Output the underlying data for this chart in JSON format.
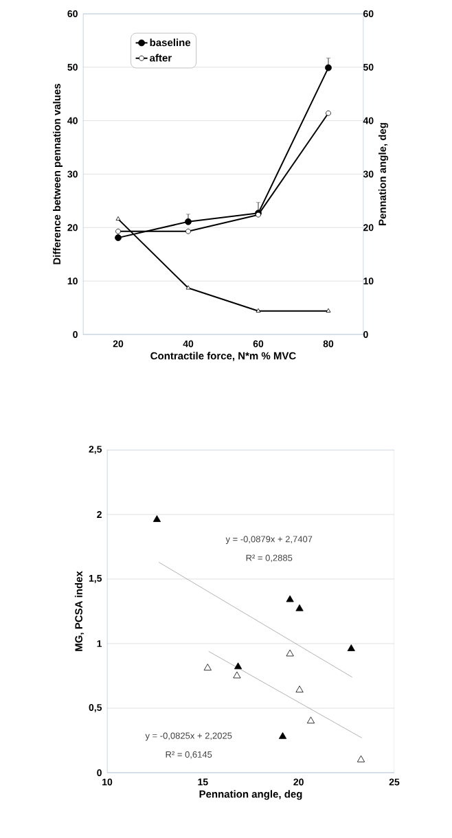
{
  "chart_data": [
    {
      "type": "line",
      "xlabel": "Contractile force, N*m % MVC",
      "ylabel": "Difference between pennation values",
      "y2label": "Pennation angle, deg",
      "x": [
        20,
        40,
        60,
        80
      ],
      "xlim": [
        10,
        90
      ],
      "xticks": [
        20,
        40,
        60,
        80
      ],
      "ylim": [
        0,
        60
      ],
      "yticks": [
        0,
        10,
        20,
        30,
        40,
        50,
        60
      ],
      "y2lim": [
        0,
        60
      ],
      "y2ticks": [
        0,
        10,
        20,
        30,
        40,
        50,
        60
      ],
      "grid": "y",
      "legend": "top left",
      "series": [
        {
          "name": "baseline",
          "color": "#000000",
          "marker": "circle",
          "values": [
            18.1,
            21.1,
            22.7,
            49.9
          ],
          "errors": [
            null,
            [
              21.1,
              22.5
            ],
            [
              22.7,
              24.7
            ],
            [
              49.9,
              51.7
            ]
          ]
        },
        {
          "name": "after",
          "color": "#000000",
          "marker": "circle",
          "values": [
            19.3,
            19.3,
            22.4,
            41.4
          ]
        },
        {
          "color": "#000000",
          "marker": "triangle",
          "axis": "y2",
          "values": [
            21.6,
            8.7,
            4.4,
            4.4
          ]
        }
      ]
    },
    {
      "type": "scatter",
      "xlabel": "Pennation angle, deg",
      "ylabel": "MG, PCSA index",
      "xlim": [
        10,
        25
      ],
      "xticks": [
        10,
        15,
        20,
        25
      ],
      "ylim": [
        0,
        2.5
      ],
      "yticks": [
        0,
        {
          "value": 0.5,
          "label": "0,5"
        },
        1,
        {
          "value": 1.5,
          "label": "1,5"
        },
        2,
        {
          "value": 2.5,
          "label": "2,5"
        }
      ],
      "grid": "y",
      "legend": false,
      "marker": "triangle",
      "annotations": [
        "y = -0,0879x + 2,7407",
        "R² = 0,2885",
        "y = -0,0825x + 2,2025",
        "R² = 0,6145"
      ],
      "series": [
        {
          "color": "#000000",
          "x": [
            12.6,
            19.55,
            20.05,
            22.75,
            16.84,
            19.17
          ],
          "values": [
            1.96,
            1.34,
            1.27,
            0.96,
            0.82,
            0.28
          ]
        },
        {
          "color": "#000000",
          "x": [
            15.25,
            16.78,
            19.55,
            20.05,
            20.64,
            23.26
          ],
          "values": [
            0.81,
            0.75,
            0.92,
            0.64,
            0.4,
            0.1
          ]
        },
        {
          "type": "line",
          "color": "#808080",
          "marker": "none",
          "x": [
            12.7,
            22.8
          ],
          "values": [
            1.63,
            0.74
          ]
        },
        {
          "type": "line",
          "color": "#808080",
          "marker": "none",
          "x": [
            15.3,
            23.3
          ],
          "values": [
            0.94,
            0.27
          ]
        }
      ]
    }
  ]
}
